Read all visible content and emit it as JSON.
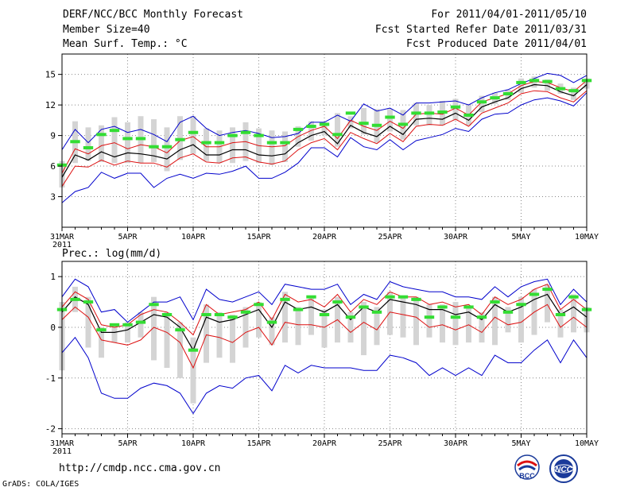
{
  "header": {
    "title": "DERF/NCC/BCC Monthly Forecast",
    "member_size": "Member Size=40",
    "variable": "Mean Surf. Temp.: °C",
    "period": "For 2011/04/01-2011/05/10",
    "started": "Fcst Started Refer Date 2011/03/31",
    "produced": "Fcst Produced Date 2011/04/01"
  },
  "footer": {
    "url": "http://cmdp.ncc.cma.gov.cn",
    "credit": "GrADS: COLA/IGES",
    "logo_bcc_label": "BCC",
    "logo_ncc_label": "NCC"
  },
  "colors": {
    "envelope": "#0000cc",
    "percentile": "#dd1111",
    "mean": "#000000",
    "box": "#d4d4d4",
    "median_marker": "#33dd33",
    "grid": "#888888"
  },
  "chart_data": [
    {
      "type": "box-ensemble",
      "title": "Mean Surf. Temp.: °C",
      "x_tick_labels": [
        "31MAR",
        "5APR",
        "10APR",
        "15APR",
        "20APR",
        "25APR",
        "30APR",
        "5MAY",
        "10MAY"
      ],
      "x_tick_days": [
        0,
        5,
        10,
        15,
        20,
        25,
        30,
        35,
        40
      ],
      "x_year_label": "2011",
      "xlim": [
        0,
        40
      ],
      "ylim": [
        0,
        17
      ],
      "y_ticks": [
        3,
        6,
        9,
        12,
        15
      ],
      "grid": true,
      "days": [
        0,
        1,
        2,
        3,
        4,
        5,
        6,
        7,
        8,
        9,
        10,
        11,
        12,
        13,
        14,
        15,
        16,
        17,
        18,
        19,
        20,
        21,
        22,
        23,
        24,
        25,
        26,
        27,
        28,
        29,
        30,
        31,
        32,
        33,
        34,
        35,
        36,
        37,
        38,
        39,
        40
      ],
      "max": [
        7.6,
        9.6,
        8.3,
        9.6,
        9.9,
        9.3,
        9.6,
        9.1,
        8.4,
        10.3,
        10.9,
        9.7,
        9.0,
        9.3,
        9.5,
        9.2,
        8.8,
        8.9,
        9.2,
        10.3,
        10.3,
        11.0,
        10.4,
        12.1,
        11.4,
        11.7,
        11.0,
        12.2,
        12.2,
        12.3,
        12.4,
        12.0,
        12.7,
        13.2,
        13.5,
        14.1,
        14.6,
        15.1,
        14.9,
        14.2,
        14.9
      ],
      "p90": [
        5.3,
        7.7,
        7.2,
        8.0,
        8.3,
        7.7,
        8.1,
        7.9,
        7.3,
        8.5,
        8.9,
        7.9,
        7.9,
        8.3,
        8.4,
        8.0,
        7.9,
        8.0,
        8.9,
        9.5,
        9.9,
        8.7,
        10.5,
        9.9,
        9.5,
        10.4,
        9.7,
        11.1,
        11.2,
        11.1,
        11.7,
        11.0,
        12.3,
        12.7,
        13.1,
        13.9,
        14.3,
        14.2,
        13.7,
        13.3,
        14.4
      ],
      "mean": [
        4.9,
        7.1,
        6.6,
        7.4,
        6.9,
        7.3,
        7.2,
        7.0,
        6.7,
        7.6,
        8.1,
        7.1,
        7.1,
        7.6,
        7.6,
        7.1,
        7.0,
        7.2,
        8.3,
        9.0,
        9.4,
        8.2,
        10.0,
        9.3,
        8.9,
        9.9,
        9.1,
        10.6,
        10.7,
        10.6,
        11.2,
        10.5,
        11.8,
        12.3,
        12.7,
        13.6,
        14.0,
        13.9,
        13.3,
        12.9,
        14.0
      ],
      "p10": [
        4.0,
        6.0,
        5.9,
        6.6,
        6.1,
        6.5,
        6.3,
        6.3,
        5.9,
        6.8,
        7.2,
        6.4,
        6.3,
        6.8,
        6.9,
        6.4,
        6.2,
        6.5,
        7.6,
        8.3,
        8.7,
        7.6,
        9.3,
        8.7,
        8.2,
        9.2,
        8.4,
        9.9,
        10.1,
        10.0,
        10.6,
        9.9,
        11.2,
        11.7,
        12.2,
        13.1,
        13.4,
        13.3,
        12.7,
        12.3,
        13.4
      ],
      "min": [
        2.4,
        3.5,
        3.9,
        5.4,
        4.8,
        5.3,
        5.3,
        3.9,
        4.8,
        5.2,
        4.8,
        5.3,
        5.2,
        5.5,
        6.0,
        4.8,
        4.8,
        5.4,
        6.3,
        7.8,
        7.8,
        6.9,
        8.8,
        7.9,
        7.6,
        8.6,
        7.6,
        8.5,
        8.8,
        9.1,
        9.7,
        9.4,
        10.6,
        11.1,
        11.2,
        12.0,
        12.5,
        12.7,
        12.4,
        11.9,
        13.2
      ],
      "box_low": [
        3.9,
        6.3,
        6.5,
        6.4,
        6.3,
        6.3,
        6.3,
        6.4,
        5.5,
        6.6,
        7.2,
        6.5,
        6.3,
        6.3,
        6.5,
        6.3,
        6.1,
        6.4,
        7.9,
        8.5,
        9.0,
        7.9,
        9.7,
        9.1,
        8.3,
        9.4,
        8.6,
        10.0,
        10.0,
        10.0,
        10.5,
        10.0,
        11.3,
        12.1,
        12.5,
        13.2,
        13.7,
        13.4,
        13.1,
        12.5,
        13.6
      ],
      "box_high": [
        6.5,
        10.4,
        9.8,
        10.0,
        10.8,
        10.3,
        10.9,
        10.6,
        9.8,
        10.9,
        10.9,
        9.7,
        9.5,
        9.8,
        10.3,
        9.7,
        9.5,
        9.4,
        9.9,
        10.4,
        10.3,
        11.2,
        10.9,
        11.7,
        11.6,
        11.6,
        11.5,
        12.2,
        12.0,
        12.4,
        12.6,
        12.1,
        12.9,
        13.2,
        13.5,
        14.6,
        14.8,
        14.5,
        14.1,
        13.7,
        14.6
      ],
      "median": [
        6.1,
        8.4,
        7.8,
        9.1,
        9.5,
        8.7,
        8.7,
        7.9,
        7.9,
        8.6,
        9.3,
        8.3,
        8.3,
        9.0,
        9.3,
        9.0,
        8.3,
        8.3,
        9.6,
        9.9,
        10.1,
        9.1,
        11.2,
        10.2,
        10.0,
        10.8,
        10.1,
        11.2,
        11.2,
        11.3,
        11.8,
        11.0,
        12.3,
        12.7,
        13.1,
        14.2,
        14.4,
        14.3,
        13.6,
        13.4,
        14.4
      ]
    },
    {
      "type": "box-ensemble",
      "title": "Prec.: log(mm/d)",
      "x_tick_labels": [
        "31MAR",
        "5APR",
        "10APR",
        "15APR",
        "20APR",
        "25APR",
        "30APR",
        "5MAY",
        "10MAY"
      ],
      "x_tick_days": [
        0,
        5,
        10,
        15,
        20,
        25,
        30,
        35,
        40
      ],
      "x_year_label": "2011",
      "xlim": [
        0,
        40
      ],
      "ylim": [
        -2.1,
        1.3
      ],
      "y_ticks": [
        -2,
        -1,
        0,
        1
      ],
      "grid": true,
      "days": [
        0,
        1,
        2,
        3,
        4,
        5,
        6,
        7,
        8,
        9,
        10,
        11,
        12,
        13,
        14,
        15,
        16,
        17,
        18,
        19,
        20,
        21,
        22,
        23,
        24,
        25,
        26,
        27,
        28,
        29,
        30,
        31,
        32,
        33,
        34,
        35,
        36,
        37,
        38,
        39,
        40
      ],
      "max": [
        0.6,
        0.95,
        0.8,
        0.3,
        0.35,
        0.1,
        0.3,
        0.5,
        0.5,
        0.6,
        0.15,
        0.75,
        0.55,
        0.5,
        0.6,
        0.7,
        0.45,
        0.85,
        0.8,
        0.75,
        0.75,
        0.85,
        0.45,
        0.65,
        0.55,
        0.9,
        0.8,
        0.75,
        0.7,
        0.7,
        0.6,
        0.6,
        0.55,
        0.8,
        0.6,
        0.8,
        0.9,
        0.95,
        0.45,
        0.75,
        0.5
      ],
      "p90": [
        0.4,
        0.7,
        0.55,
        0.05,
        0.0,
        0.05,
        0.25,
        0.35,
        0.3,
        0.1,
        -0.15,
        0.45,
        0.25,
        0.3,
        0.35,
        0.5,
        0.15,
        0.65,
        0.5,
        0.55,
        0.4,
        0.65,
        0.3,
        0.55,
        0.45,
        0.7,
        0.6,
        0.6,
        0.45,
        0.5,
        0.4,
        0.45,
        0.25,
        0.6,
        0.45,
        0.55,
        0.75,
        0.85,
        0.35,
        0.55,
        0.35
      ],
      "mean": [
        0.3,
        0.6,
        0.45,
        -0.1,
        -0.1,
        -0.05,
        0.1,
        0.25,
        0.2,
        0.0,
        -0.45,
        0.2,
        0.1,
        0.15,
        0.25,
        0.35,
        0.0,
        0.5,
        0.35,
        0.4,
        0.3,
        0.45,
        0.15,
        0.4,
        0.3,
        0.55,
        0.5,
        0.45,
        0.35,
        0.35,
        0.25,
        0.3,
        0.15,
        0.45,
        0.3,
        0.4,
        0.55,
        0.65,
        0.25,
        0.4,
        0.2
      ],
      "p10": [
        0.15,
        0.4,
        0.2,
        -0.25,
        -0.3,
        -0.35,
        -0.25,
        0.0,
        -0.1,
        -0.3,
        -0.8,
        -0.15,
        -0.2,
        -0.3,
        -0.1,
        0.0,
        -0.35,
        0.1,
        0.05,
        0.05,
        0.0,
        0.15,
        -0.1,
        0.1,
        -0.05,
        0.3,
        0.25,
        0.2,
        0.0,
        0.05,
        -0.05,
        0.05,
        -0.1,
        0.2,
        0.05,
        0.1,
        0.3,
        0.45,
        0.0,
        0.2,
        0.0
      ],
      "min": [
        -0.5,
        -0.2,
        -0.6,
        -1.3,
        -1.4,
        -1.4,
        -1.2,
        -1.1,
        -1.15,
        -1.3,
        -1.7,
        -1.3,
        -1.15,
        -1.2,
        -1.0,
        -0.95,
        -1.25,
        -0.75,
        -0.9,
        -0.75,
        -0.8,
        -0.8,
        -0.8,
        -0.85,
        -0.85,
        -0.55,
        -0.6,
        -0.7,
        -0.95,
        -0.8,
        -0.95,
        -0.8,
        -0.95,
        -0.55,
        -0.7,
        -0.7,
        -0.45,
        -0.25,
        -0.7,
        -0.25,
        -0.6
      ],
      "box_low": [
        -0.85,
        0.3,
        -0.4,
        -0.6,
        -0.3,
        -0.3,
        -0.2,
        -0.65,
        -0.8,
        -1.0,
        -1.5,
        -0.7,
        -0.6,
        -0.7,
        -0.4,
        -0.2,
        -0.35,
        -0.3,
        -0.35,
        -0.15,
        -0.4,
        -0.3,
        -0.3,
        -0.55,
        -0.35,
        -0.15,
        -0.2,
        -0.35,
        -0.2,
        -0.3,
        -0.35,
        -0.3,
        -0.3,
        -0.35,
        -0.1,
        -0.3,
        -0.15,
        0.1,
        -0.2,
        -0.1,
        -0.1
      ],
      "box_high": [
        0.5,
        0.8,
        0.6,
        0.0,
        0.05,
        0.1,
        0.3,
        0.6,
        0.3,
        0.1,
        -0.2,
        0.45,
        0.3,
        0.25,
        0.4,
        0.5,
        0.2,
        0.7,
        0.4,
        0.6,
        0.35,
        0.6,
        0.3,
        0.5,
        0.4,
        0.7,
        0.6,
        0.6,
        0.45,
        0.45,
        0.5,
        0.4,
        0.3,
        0.6,
        0.4,
        0.6,
        0.75,
        0.85,
        0.35,
        0.65,
        0.4
      ],
      "median": [
        0.35,
        0.55,
        0.5,
        -0.05,
        0.05,
        0.05,
        0.1,
        0.45,
        0.25,
        -0.05,
        -0.45,
        0.25,
        0.25,
        0.2,
        0.3,
        0.45,
        0.1,
        0.55,
        0.35,
        0.6,
        0.25,
        0.5,
        0.2,
        0.4,
        0.3,
        0.6,
        0.6,
        0.55,
        0.2,
        0.4,
        0.2,
        0.4,
        0.2,
        0.5,
        0.3,
        0.45,
        0.65,
        0.75,
        0.25,
        0.6,
        0.35
      ]
    }
  ]
}
